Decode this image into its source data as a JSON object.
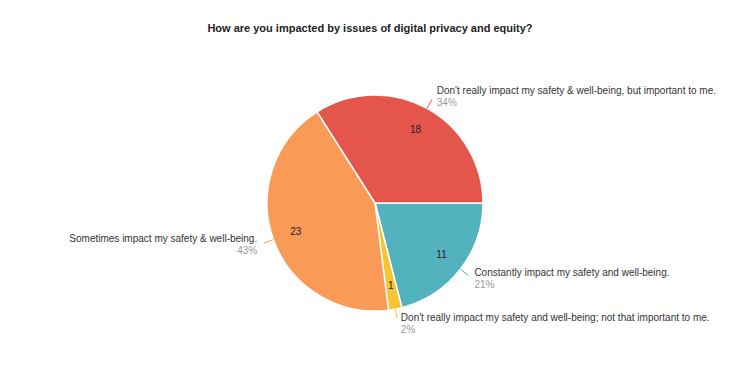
{
  "chart_data": {
    "type": "pie",
    "title": "How are you impacted by issues of digital privacy and equity?",
    "categories": [
      "Constantly impact my safety and well-being.",
      "Don't really impact my safety and well-being; not that important to me.",
      "Sometimes impact my safety & well-being.",
      "Don't really impact my safety & well-being, but important to me."
    ],
    "values": [
      11,
      1,
      23,
      18
    ],
    "percentages": [
      {
        "value": 21,
        "label": "21%"
      },
      {
        "value": 2,
        "label": "2%"
      },
      {
        "value": 43,
        "label": "43%"
      },
      {
        "value": 34,
        "label": "34%"
      }
    ],
    "colors": [
      "#52b3bf",
      "#f7c531",
      "#fa9a57",
      "#e4564b"
    ],
    "data_labels": true
  }
}
